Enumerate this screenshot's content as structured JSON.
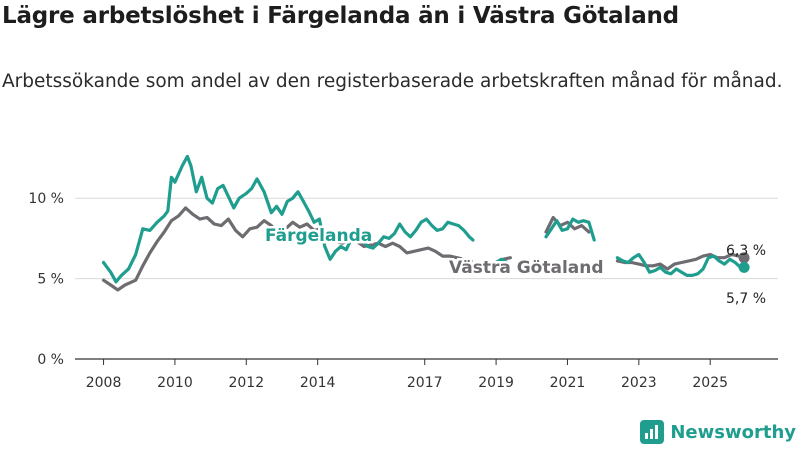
{
  "title": "Lägre arbetslöshet i Färgelanda än i Västra Götaland",
  "subtitle": "Arbetssökande som andel av den registerbaserade arbetskraften månad för månad.",
  "brand": "Newsworthy",
  "colors": {
    "fargelanda": "#1f9e8f",
    "vastra_gotaland": "#6e6c70",
    "grid": "#d9d9d9",
    "axis": "#333333"
  },
  "chart_data": {
    "type": "line",
    "ylim": [
      0,
      13
    ],
    "yticks": [
      0,
      5,
      10
    ],
    "ytick_labels": [
      "0 %",
      "5 %",
      "10 %"
    ],
    "xlim": [
      2007.2,
      2026.9
    ],
    "xticks": [
      2008,
      2010,
      2012,
      2014,
      2017,
      2019,
      2021,
      2023,
      2025
    ],
    "xtick_labels": [
      "2008",
      "2010",
      "2012",
      "2014",
      "2017",
      "2019",
      "2021",
      "2023",
      "2025"
    ],
    "gaps": [
      [
        2018.45,
        2018.95
      ],
      [
        2019.6,
        2020.3
      ],
      [
        2021.75,
        2022.3
      ]
    ],
    "series": [
      {
        "name": "Västra Götaland",
        "label": "Västra Götaland",
        "end_label": "6,3 %",
        "last_value": 6.3,
        "points": [
          [
            2008.0,
            4.9
          ],
          [
            2008.2,
            4.6
          ],
          [
            2008.4,
            4.3
          ],
          [
            2008.6,
            4.6
          ],
          [
            2008.9,
            4.9
          ],
          [
            2009.1,
            5.8
          ],
          [
            2009.3,
            6.6
          ],
          [
            2009.5,
            7.3
          ],
          [
            2009.7,
            7.9
          ],
          [
            2009.9,
            8.6
          ],
          [
            2010.1,
            8.9
          ],
          [
            2010.3,
            9.4
          ],
          [
            2010.5,
            9.0
          ],
          [
            2010.7,
            8.7
          ],
          [
            2010.9,
            8.8
          ],
          [
            2011.1,
            8.4
          ],
          [
            2011.3,
            8.3
          ],
          [
            2011.5,
            8.7
          ],
          [
            2011.7,
            8.0
          ],
          [
            2011.9,
            7.6
          ],
          [
            2012.1,
            8.1
          ],
          [
            2012.3,
            8.2
          ],
          [
            2012.5,
            8.6
          ],
          [
            2012.7,
            8.3
          ],
          [
            2012.9,
            7.8
          ],
          [
            2013.1,
            8.1
          ],
          [
            2013.3,
            8.5
          ],
          [
            2013.5,
            8.2
          ],
          [
            2013.7,
            8.4
          ],
          [
            2013.9,
            8.0
          ],
          [
            2014.1,
            8.1
          ],
          [
            2014.3,
            7.7
          ],
          [
            2014.5,
            7.3
          ],
          [
            2014.7,
            7.2
          ],
          [
            2014.9,
            7.4
          ],
          [
            2015.1,
            7.3
          ],
          [
            2015.3,
            7.0
          ],
          [
            2015.5,
            7.1
          ],
          [
            2015.7,
            7.2
          ],
          [
            2015.9,
            7.0
          ],
          [
            2016.1,
            7.2
          ],
          [
            2016.3,
            7.0
          ],
          [
            2016.5,
            6.6
          ],
          [
            2016.7,
            6.7
          ],
          [
            2016.9,
            6.8
          ],
          [
            2017.1,
            6.9
          ],
          [
            2017.3,
            6.7
          ],
          [
            2017.5,
            6.4
          ],
          [
            2017.7,
            6.4
          ],
          [
            2017.9,
            6.3
          ],
          [
            2018.1,
            6.2
          ],
          [
            2018.3,
            6.1
          ],
          [
            2019.0,
            6.0
          ],
          [
            2019.2,
            6.2
          ],
          [
            2019.4,
            6.3
          ],
          [
            2020.4,
            7.9
          ],
          [
            2020.6,
            8.8
          ],
          [
            2020.8,
            8.3
          ],
          [
            2021.0,
            8.5
          ],
          [
            2021.2,
            8.1
          ],
          [
            2021.4,
            8.3
          ],
          [
            2021.6,
            7.9
          ],
          [
            2022.4,
            6.1
          ],
          [
            2022.6,
            6.0
          ],
          [
            2022.8,
            6.0
          ],
          [
            2023.0,
            5.9
          ],
          [
            2023.2,
            5.8
          ],
          [
            2023.4,
            5.8
          ],
          [
            2023.6,
            5.9
          ],
          [
            2023.8,
            5.6
          ],
          [
            2024.0,
            5.9
          ],
          [
            2024.2,
            6.0
          ],
          [
            2024.4,
            6.1
          ],
          [
            2024.6,
            6.2
          ],
          [
            2024.8,
            6.4
          ],
          [
            2025.0,
            6.5
          ],
          [
            2025.2,
            6.3
          ],
          [
            2025.4,
            6.3
          ],
          [
            2025.6,
            6.5
          ],
          [
            2025.8,
            6.4
          ],
          [
            2025.95,
            6.3
          ]
        ]
      },
      {
        "name": "Färgelanda",
        "label": "Färgelanda",
        "end_label": "5,7 %",
        "last_value": 5.7,
        "points": [
          [
            2008.0,
            6.0
          ],
          [
            2008.2,
            5.4
          ],
          [
            2008.35,
            4.8
          ],
          [
            2008.5,
            5.2
          ],
          [
            2008.7,
            5.6
          ],
          [
            2008.9,
            6.5
          ],
          [
            2009.1,
            8.1
          ],
          [
            2009.3,
            8.0
          ],
          [
            2009.5,
            8.5
          ],
          [
            2009.7,
            8.9
          ],
          [
            2009.8,
            9.2
          ],
          [
            2009.9,
            11.3
          ],
          [
            2010.0,
            11.0
          ],
          [
            2010.2,
            12.0
          ],
          [
            2010.35,
            12.6
          ],
          [
            2010.45,
            12.0
          ],
          [
            2010.6,
            10.4
          ],
          [
            2010.75,
            11.3
          ],
          [
            2010.9,
            10.0
          ],
          [
            2011.05,
            9.7
          ],
          [
            2011.2,
            10.6
          ],
          [
            2011.35,
            10.8
          ],
          [
            2011.5,
            10.1
          ],
          [
            2011.65,
            9.4
          ],
          [
            2011.8,
            10.0
          ],
          [
            2012.0,
            10.3
          ],
          [
            2012.15,
            10.6
          ],
          [
            2012.3,
            11.2
          ],
          [
            2012.5,
            10.4
          ],
          [
            2012.7,
            9.1
          ],
          [
            2012.85,
            9.5
          ],
          [
            2013.0,
            9.0
          ],
          [
            2013.15,
            9.8
          ],
          [
            2013.3,
            10.0
          ],
          [
            2013.45,
            10.4
          ],
          [
            2013.6,
            9.8
          ],
          [
            2013.75,
            9.2
          ],
          [
            2013.9,
            8.5
          ],
          [
            2014.05,
            8.7
          ],
          [
            2014.2,
            7.0
          ],
          [
            2014.35,
            6.2
          ],
          [
            2014.5,
            6.7
          ],
          [
            2014.65,
            7.0
          ],
          [
            2014.8,
            6.8
          ],
          [
            2014.95,
            7.5
          ],
          [
            2015.1,
            7.9
          ],
          [
            2015.25,
            7.4
          ],
          [
            2015.4,
            7.0
          ],
          [
            2015.55,
            6.9
          ],
          [
            2015.7,
            7.2
          ],
          [
            2015.85,
            7.6
          ],
          [
            2016.0,
            7.5
          ],
          [
            2016.15,
            7.8
          ],
          [
            2016.3,
            8.4
          ],
          [
            2016.45,
            7.9
          ],
          [
            2016.6,
            7.6
          ],
          [
            2016.75,
            8.0
          ],
          [
            2016.9,
            8.5
          ],
          [
            2017.05,
            8.7
          ],
          [
            2017.2,
            8.3
          ],
          [
            2017.35,
            8.0
          ],
          [
            2017.5,
            8.1
          ],
          [
            2017.65,
            8.5
          ],
          [
            2017.8,
            8.4
          ],
          [
            2017.95,
            8.3
          ],
          [
            2018.1,
            8.0
          ],
          [
            2018.25,
            7.6
          ],
          [
            2018.35,
            7.4
          ],
          [
            2019.0,
            6.0
          ],
          [
            2019.15,
            6.2
          ],
          [
            2019.3,
            6.0
          ],
          [
            2020.4,
            7.6
          ],
          [
            2020.55,
            8.1
          ],
          [
            2020.7,
            8.6
          ],
          [
            2020.85,
            8.0
          ],
          [
            2021.0,
            8.1
          ],
          [
            2021.15,
            8.7
          ],
          [
            2021.3,
            8.5
          ],
          [
            2021.45,
            8.6
          ],
          [
            2021.6,
            8.5
          ],
          [
            2021.75,
            7.4
          ],
          [
            2022.4,
            6.3
          ],
          [
            2022.55,
            6.1
          ],
          [
            2022.7,
            6.0
          ],
          [
            2022.85,
            6.3
          ],
          [
            2023.0,
            6.5
          ],
          [
            2023.15,
            6.0
          ],
          [
            2023.3,
            5.4
          ],
          [
            2023.45,
            5.5
          ],
          [
            2023.6,
            5.7
          ],
          [
            2023.75,
            5.4
          ],
          [
            2023.9,
            5.3
          ],
          [
            2024.05,
            5.6
          ],
          [
            2024.2,
            5.4
          ],
          [
            2024.35,
            5.2
          ],
          [
            2024.5,
            5.2
          ],
          [
            2024.65,
            5.3
          ],
          [
            2024.8,
            5.6
          ],
          [
            2024.95,
            6.3
          ],
          [
            2025.1,
            6.4
          ],
          [
            2025.25,
            6.1
          ],
          [
            2025.4,
            5.9
          ],
          [
            2025.55,
            6.2
          ],
          [
            2025.7,
            6.0
          ],
          [
            2025.85,
            5.7
          ],
          [
            2025.95,
            5.7
          ]
        ]
      }
    ]
  }
}
